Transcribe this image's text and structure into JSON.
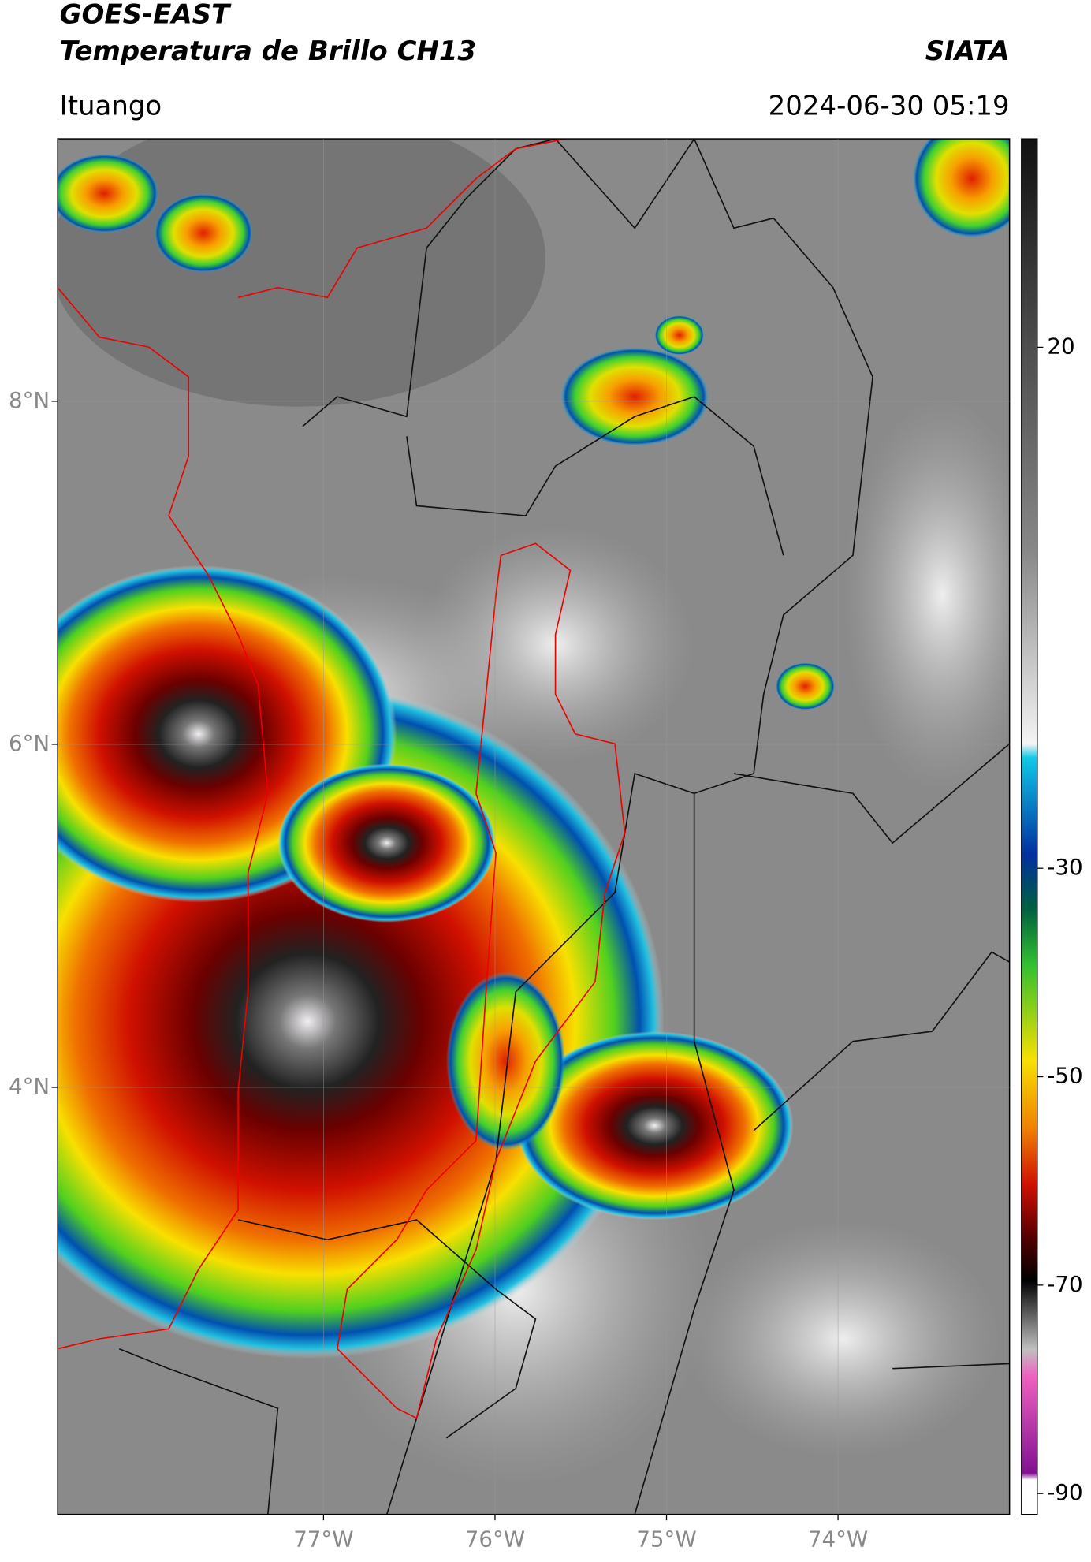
{
  "header": {
    "title": "GOES-EAST",
    "subtitle": "Temperatura de Brillo CH13",
    "source": "SIATA",
    "location": "Ituango",
    "datetime": "2024-06-30 05:19"
  },
  "map": {
    "xlim": [
      -78.55,
      -73.0
    ],
    "ylim": [
      1.51,
      9.53
    ],
    "xticks": [
      {
        "value": -77,
        "label": "77°W"
      },
      {
        "value": -76,
        "label": "76°W"
      },
      {
        "value": -75,
        "label": "75°W"
      },
      {
        "value": -74,
        "label": "74°W"
      }
    ],
    "yticks": [
      {
        "value": 8,
        "label": "8°N"
      },
      {
        "value": 6,
        "label": "6°N"
      },
      {
        "value": 4,
        "label": "4°N"
      }
    ],
    "grid": true
  },
  "colorbar": {
    "lim": [
      -92,
      40
    ],
    "ticks": [
      20,
      -30,
      -50,
      -70,
      -90
    ]
  }
}
